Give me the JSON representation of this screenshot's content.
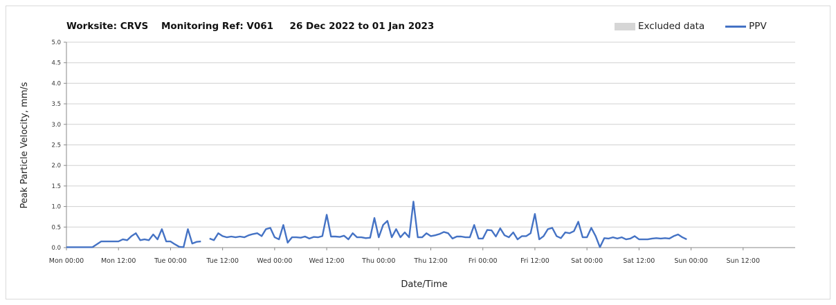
{
  "chart_data": {
    "type": "line",
    "title": "Worksite: CRVS    Monitoring Ref: V061     26 Dec 2022 to 01 Jan 2023",
    "xlabel": "Date/Time",
    "ylabel": "Peak Particle Velocity, mm/s",
    "ylim": [
      0,
      5
    ],
    "xlim": [
      0,
      168
    ],
    "yticks": [
      "0.0",
      "0.5",
      "1.0",
      "1.5",
      "2.0",
      "2.5",
      "3.0",
      "3.5",
      "4.0",
      "4.5",
      "5.0"
    ],
    "xticks": [
      {
        "pos": 0,
        "label": "Mon 00:00"
      },
      {
        "pos": 12,
        "label": "Mon 12:00"
      },
      {
        "pos": 24,
        "label": "Tue 00:00"
      },
      {
        "pos": 36,
        "label": "Tue 12:00"
      },
      {
        "pos": 48,
        "label": "Wed 00:00"
      },
      {
        "pos": 60,
        "label": "Wed 12:00"
      },
      {
        "pos": 72,
        "label": "Thu 00:00"
      },
      {
        "pos": 84,
        "label": "Thu 12:00"
      },
      {
        "pos": 96,
        "label": "Fri 00:00"
      },
      {
        "pos": 108,
        "label": "Fri 12:00"
      },
      {
        "pos": 120,
        "label": "Sat 00:00"
      },
      {
        "pos": 132,
        "label": "Sat 12:00"
      },
      {
        "pos": 144,
        "label": "Sun 00:00"
      },
      {
        "pos": 156,
        "label": "Sun 12:00"
      }
    ],
    "grid": true,
    "legend_position": "top-right",
    "series": [
      {
        "name": "PPV",
        "color": "#4472c4",
        "segments": [
          [
            [
              0,
              0.01
            ],
            [
              2,
              0.01
            ],
            [
              4,
              0.01
            ],
            [
              6,
              0.01
            ],
            [
              7,
              0.08
            ],
            [
              8,
              0.15
            ],
            [
              9,
              0.15
            ],
            [
              10,
              0.15
            ],
            [
              11,
              0.15
            ],
            [
              12,
              0.15
            ],
            [
              13,
              0.2
            ],
            [
              14,
              0.18
            ],
            [
              15,
              0.28
            ],
            [
              16,
              0.35
            ],
            [
              17,
              0.18
            ],
            [
              18,
              0.2
            ],
            [
              19,
              0.18
            ],
            [
              20,
              0.32
            ],
            [
              21,
              0.2
            ],
            [
              22,
              0.45
            ],
            [
              23,
              0.15
            ],
            [
              24,
              0.15
            ],
            [
              25,
              0.08
            ],
            [
              26,
              0.02
            ],
            [
              27,
              0.01
            ],
            [
              28,
              0.45
            ],
            [
              29,
              0.1
            ],
            [
              30,
              0.14
            ],
            [
              31,
              0.15
            ]
          ],
          [
            [
              33,
              0.22
            ],
            [
              34,
              0.18
            ],
            [
              35,
              0.35
            ],
            [
              36,
              0.28
            ],
            [
              37,
              0.25
            ],
            [
              38,
              0.27
            ],
            [
              39,
              0.25
            ],
            [
              40,
              0.27
            ],
            [
              41,
              0.25
            ],
            [
              42,
              0.3
            ],
            [
              43,
              0.33
            ],
            [
              44,
              0.35
            ],
            [
              45,
              0.28
            ],
            [
              46,
              0.45
            ],
            [
              47,
              0.48
            ],
            [
              48,
              0.25
            ],
            [
              49,
              0.2
            ],
            [
              50,
              0.55
            ],
            [
              51,
              0.12
            ],
            [
              52,
              0.25
            ],
            [
              53,
              0.25
            ],
            [
              54,
              0.24
            ],
            [
              55,
              0.27
            ],
            [
              56,
              0.22
            ],
            [
              57,
              0.26
            ],
            [
              58,
              0.25
            ],
            [
              59,
              0.28
            ],
            [
              60,
              0.8
            ],
            [
              61,
              0.27
            ],
            [
              62,
              0.27
            ],
            [
              63,
              0.26
            ],
            [
              64,
              0.29
            ],
            [
              65,
              0.2
            ],
            [
              66,
              0.35
            ],
            [
              67,
              0.25
            ],
            [
              68,
              0.25
            ],
            [
              69,
              0.23
            ],
            [
              70,
              0.24
            ],
            [
              71,
              0.72
            ],
            [
              72,
              0.25
            ],
            [
              73,
              0.55
            ],
            [
              74,
              0.65
            ],
            [
              75,
              0.25
            ],
            [
              76,
              0.45
            ],
            [
              77,
              0.25
            ],
            [
              78,
              0.37
            ],
            [
              79,
              0.25
            ],
            [
              80,
              1.12
            ],
            [
              81,
              0.25
            ],
            [
              82,
              0.25
            ],
            [
              83,
              0.35
            ],
            [
              84,
              0.28
            ],
            [
              85,
              0.3
            ],
            [
              86,
              0.33
            ],
            [
              87,
              0.38
            ],
            [
              88,
              0.35
            ],
            [
              89,
              0.22
            ],
            [
              90,
              0.27
            ],
            [
              91,
              0.27
            ],
            [
              92,
              0.25
            ],
            [
              93,
              0.25
            ],
            [
              94,
              0.55
            ],
            [
              95,
              0.22
            ],
            [
              96,
              0.22
            ],
            [
              97,
              0.43
            ],
            [
              98,
              0.42
            ],
            [
              99,
              0.27
            ],
            [
              100,
              0.47
            ],
            [
              101,
              0.3
            ],
            [
              102,
              0.25
            ],
            [
              103,
              0.37
            ],
            [
              104,
              0.2
            ],
            [
              105,
              0.28
            ],
            [
              106,
              0.28
            ],
            [
              107,
              0.35
            ],
            [
              108,
              0.82
            ],
            [
              109,
              0.2
            ],
            [
              110,
              0.28
            ],
            [
              111,
              0.45
            ],
            [
              112,
              0.48
            ],
            [
              113,
              0.28
            ],
            [
              114,
              0.23
            ],
            [
              115,
              0.37
            ],
            [
              116,
              0.35
            ],
            [
              117,
              0.4
            ],
            [
              118,
              0.63
            ],
            [
              119,
              0.25
            ],
            [
              120,
              0.25
            ],
            [
              121,
              0.48
            ],
            [
              122,
              0.28
            ],
            [
              123,
              0.01
            ],
            [
              124,
              0.23
            ],
            [
              125,
              0.22
            ],
            [
              126,
              0.25
            ],
            [
              127,
              0.22
            ],
            [
              128,
              0.25
            ],
            [
              129,
              0.2
            ],
            [
              130,
              0.22
            ],
            [
              131,
              0.28
            ],
            [
              132,
              0.2
            ],
            [
              133,
              0.2
            ],
            [
              134,
              0.2
            ],
            [
              135,
              0.22
            ],
            [
              136,
              0.23
            ],
            [
              137,
              0.22
            ],
            [
              138,
              0.23
            ],
            [
              139,
              0.22
            ],
            [
              140,
              0.28
            ],
            [
              141,
              0.32
            ],
            [
              142,
              0.25
            ],
            [
              143,
              0.2
            ]
          ]
        ]
      }
    ],
    "legend": [
      {
        "label": "Excluded data",
        "color": "#d6d6d6",
        "kind": "area"
      },
      {
        "label": "PPV",
        "color": "#4472c4",
        "kind": "line"
      }
    ]
  }
}
